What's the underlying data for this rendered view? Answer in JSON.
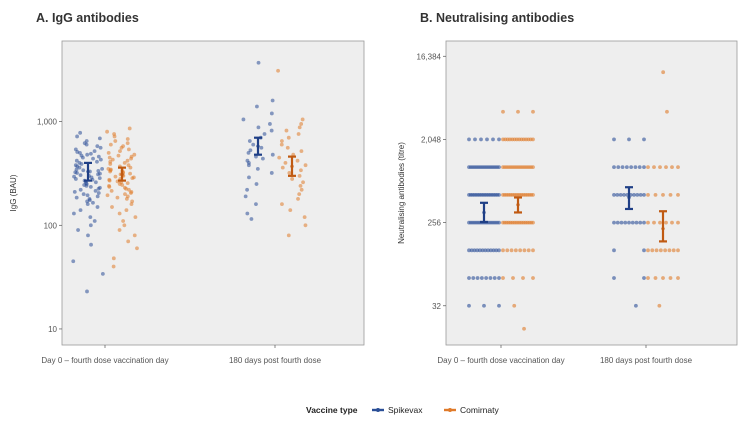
{
  "colors": {
    "spikevax": "#2b4f97",
    "comirnaty": "#e07b2a",
    "panel_bg": "#eeeeee",
    "panel_border": "#999999"
  },
  "legend": {
    "title": "Vaccine type",
    "items": [
      {
        "label": "Spikevax",
        "color": "#2b4f97"
      },
      {
        "label": "Comirnaty",
        "color": "#e07b2a"
      }
    ],
    "placement": "bottom"
  },
  "chart_data": [
    {
      "type": "scatter",
      "title": "A. IgG antibodies",
      "ylabel": "IgG (BAU)",
      "xlabel": "",
      "yscale": "log10",
      "ylim": [
        7,
        6000
      ],
      "yticks": [
        10,
        100,
        1000
      ],
      "ytick_labels": [
        "10",
        "100",
        "1,000"
      ],
      "categories": [
        "Day 0 – fourth dose vaccination day",
        "180 days post fourth dose"
      ],
      "grid": false,
      "series": [
        {
          "name": "Spikevax",
          "groups": [
            {
              "category": "Day 0 – fourth dose vaccination day",
              "gmt": 330,
              "ci": [
                270,
                400
              ],
              "points": [
                780,
                720,
                690,
                650,
                620,
                600,
                580,
                560,
                540,
                520,
                510,
                500,
                490,
                480,
                470,
                460,
                450,
                440,
                430,
                420,
                410,
                400,
                390,
                380,
                370,
                360,
                350,
                345,
                340,
                335,
                330,
                325,
                320,
                315,
                310,
                305,
                300,
                295,
                290,
                285,
                280,
                275,
                270,
                265,
                260,
                255,
                250,
                245,
                240,
                235,
                230,
                225,
                220,
                215,
                210,
                205,
                200,
                195,
                190,
                185,
                180,
                175,
                170,
                165,
                160,
                150,
                140,
                130,
                120,
                110,
                100,
                90,
                80,
                65,
                45,
                34,
                23
              ]
            },
            {
              "category": "180 days post fourth dose",
              "gmt": 580,
              "ci": [
                480,
                700
              ],
              "points": [
                3700,
                1600,
                1400,
                1200,
                1050,
                950,
                880,
                820,
                760,
                700,
                650,
                600,
                560,
                530,
                500,
                480,
                460,
                440,
                420,
                400,
                380,
                350,
                320,
                290,
                250,
                220,
                190,
                160,
                130,
                115
              ]
            }
          ]
        },
        {
          "name": "Comirnaty",
          "groups": [
            {
              "category": "Day 0 – fourth dose vaccination day",
              "gmt": 310,
              "ci": [
                270,
                360
              ],
              "points": [
                860,
                800,
                760,
                720,
                680,
                650,
                620,
                600,
                580,
                560,
                540,
                520,
                500,
                480,
                470,
                460,
                450,
                440,
                430,
                420,
                410,
                400,
                390,
                380,
                370,
                360,
                350,
                345,
                340,
                335,
                330,
                325,
                320,
                315,
                310,
                305,
                300,
                295,
                290,
                285,
                280,
                275,
                270,
                265,
                260,
                255,
                250,
                245,
                240,
                235,
                230,
                225,
                220,
                215,
                210,
                205,
                200,
                195,
                190,
                185,
                180,
                170,
                160,
                150,
                140,
                130,
                120,
                110,
                100,
                90,
                80,
                70,
                60,
                48,
                40
              ]
            },
            {
              "category": "180 days post fourth dose",
              "gmt": 370,
              "ci": [
                300,
                460
              ],
              "points": [
                3100,
                1050,
                950,
                880,
                820,
                760,
                700,
                650,
                600,
                560,
                520,
                480,
                450,
                420,
                400,
                380,
                360,
                340,
                320,
                300,
                280,
                260,
                240,
                220,
                200,
                180,
                160,
                140,
                120,
                100,
                80
              ]
            }
          ]
        }
      ]
    },
    {
      "type": "scatter",
      "title": "B. Neutralising antibodies",
      "ylabel": "Neutralising antibodies (titre)",
      "xlabel": "",
      "yscale": "log2",
      "ylim": [
        12,
        24000
      ],
      "yticks": [
        32,
        256,
        2048,
        16384
      ],
      "ytick_labels": [
        "32",
        "256",
        "2,048",
        "16,384"
      ],
      "categories": [
        "Day 0 – fourth dose vaccination day",
        "180 days post fourth dose"
      ],
      "grid": false,
      "series": [
        {
          "name": "Spikevax",
          "groups": [
            {
              "category": "Day 0 – fourth dose vaccination day",
              "gmt": 330,
              "ci": [
                260,
                420
              ],
              "levels": [
                {
                  "value": 2048,
                  "count": 6
                },
                {
                  "value": 1024,
                  "count": 16
                },
                {
                  "value": 512,
                  "count": 18
                },
                {
                  "value": 256,
                  "count": 16
                },
                {
                  "value": 128,
                  "count": 12
                },
                {
                  "value": 64,
                  "count": 8
                },
                {
                  "value": 32,
                  "count": 3
                }
              ]
            },
            {
              "category": "180 days post fourth dose",
              "gmt": 480,
              "ci": [
                360,
                620
              ],
              "levels": [
                {
                  "value": 2048,
                  "count": 3
                },
                {
                  "value": 1024,
                  "count": 8
                },
                {
                  "value": 512,
                  "count": 10
                },
                {
                  "value": 256,
                  "count": 9
                },
                {
                  "value": 128,
                  "count": 2
                },
                {
                  "value": 64,
                  "count": 2
                },
                {
                  "value": 32,
                  "count": 1
                }
              ]
            }
          ]
        },
        {
          "name": "Comirnaty",
          "groups": [
            {
              "category": "Day 0 – fourth dose vaccination day",
              "gmt": 400,
              "ci": [
                330,
                480
              ],
              "levels": [
                {
                  "value": 4096,
                  "count": 3
                },
                {
                  "value": 2048,
                  "count": 14
                },
                {
                  "value": 1024,
                  "count": 16
                },
                {
                  "value": 512,
                  "count": 17
                },
                {
                  "value": 256,
                  "count": 17
                },
                {
                  "value": 128,
                  "count": 8
                },
                {
                  "value": 64,
                  "count": 4
                },
                {
                  "value": 32,
                  "count": 1
                },
                {
                  "value": 18,
                  "count": 1
                }
              ]
            },
            {
              "category": "180 days post fourth dose",
              "gmt": 220,
              "ci": [
                160,
                340
              ],
              "levels": [
                {
                  "value": 11000,
                  "count": 1
                },
                {
                  "value": 4096,
                  "count": 1
                },
                {
                  "value": 1024,
                  "count": 6
                },
                {
                  "value": 512,
                  "count": 5
                },
                {
                  "value": 256,
                  "count": 6
                },
                {
                  "value": 128,
                  "count": 8
                },
                {
                  "value": 64,
                  "count": 5
                },
                {
                  "value": 32,
                  "count": 1
                }
              ]
            }
          ]
        }
      ]
    }
  ]
}
